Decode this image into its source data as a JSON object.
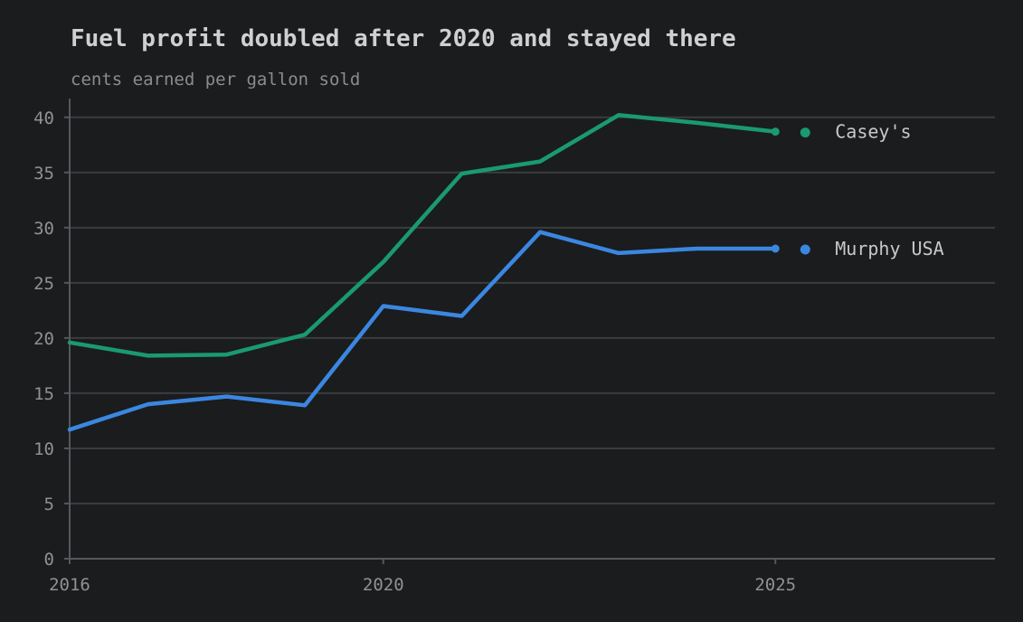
{
  "chart_data": {
    "type": "line",
    "title": "Fuel profit doubled after 2020 and stayed there",
    "subtitle": "cents earned per gallon sold",
    "xlabel": "",
    "ylabel": "",
    "xlim": [
      2016,
      2027.8
    ],
    "ylim": [
      0,
      41.7
    ],
    "x_ticks": [
      2016,
      2020,
      2025
    ],
    "y_ticks": [
      0,
      5,
      10,
      15,
      20,
      25,
      30,
      35,
      40
    ],
    "grid": "horizontal",
    "legend": "end-of-line labels, right",
    "x": [
      2016,
      2017,
      2018,
      2019,
      2020,
      2021,
      2022,
      2023,
      2024,
      2025
    ],
    "series": [
      {
        "name": "Casey's",
        "color": "#1a9a6e",
        "values": [
          19.6,
          18.4,
          18.5,
          20.3,
          26.9,
          34.9,
          36.0,
          40.2,
          39.5,
          38.7
        ]
      },
      {
        "name": "Murphy USA",
        "color": "#3b87e0",
        "values": [
          11.7,
          14.0,
          14.7,
          13.9,
          22.9,
          22.0,
          29.6,
          27.7,
          28.1,
          28.1
        ]
      }
    ]
  }
}
